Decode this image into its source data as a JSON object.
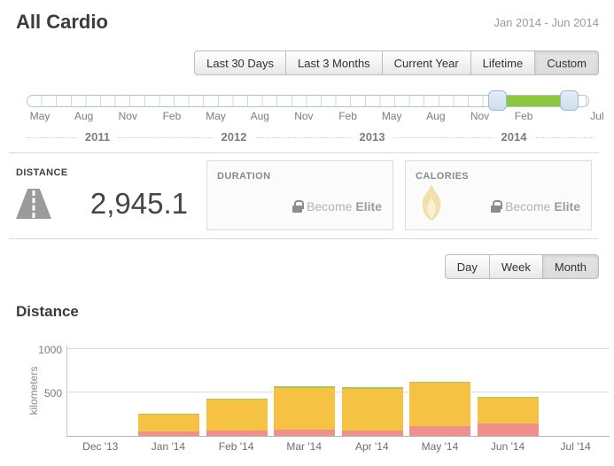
{
  "header": {
    "title": "All Cardio",
    "date_range": "Jan 2014 - Jun 2014"
  },
  "range_tabs": {
    "items": [
      "Last 30 Days",
      "Last 3 Months",
      "Current Year",
      "Lifetime",
      "Custom"
    ],
    "selected": "Custom"
  },
  "slider": {
    "month_labels": [
      "May",
      "Aug",
      "Nov",
      "Feb",
      "May",
      "Aug",
      "Nov",
      "Feb",
      "May",
      "Aug",
      "Nov",
      "Feb",
      "Jul"
    ],
    "year_labels": [
      "2011",
      "2012",
      "2013",
      "2014"
    ],
    "selected_range_color": "#8dc63f"
  },
  "stats": {
    "distance": {
      "label": "DISTANCE",
      "value": "2,945.1",
      "icon": "road-icon"
    },
    "duration": {
      "label": "DURATION",
      "locked_text": "Become",
      "locked_text_bold": "Elite",
      "icon": "lock-icon"
    },
    "calories": {
      "label": "CALORIES",
      "locked_text": "Become",
      "locked_text_bold": "Elite",
      "icon": "flame-icon",
      "flame_color": "#f2dfa9"
    }
  },
  "granularity_tabs": {
    "items": [
      "Day",
      "Week",
      "Month"
    ],
    "selected": "Month"
  },
  "chart": {
    "title": "Distance"
  },
  "chart_data": {
    "type": "bar",
    "stacked": true,
    "title": "Distance",
    "categories": [
      "Dec '13",
      "Jan '14",
      "Feb '14",
      "Mar '14",
      "Apr '14",
      "May '14",
      "Jun '14",
      "Jul '14"
    ],
    "series": [
      {
        "name": "pink-segment",
        "color": "#f0908c",
        "values": [
          0,
          50,
          65,
          70,
          65,
          110,
          140,
          0
        ]
      },
      {
        "name": "yellow-segment",
        "color": "#f5c243",
        "values": [
          0,
          195,
          350,
          483,
          480,
          505,
          295,
          0
        ]
      },
      {
        "name": "green-segment",
        "color": "#a6c84d",
        "values": [
          0,
          15,
          12,
          17,
          15,
          8,
          15,
          0
        ]
      }
    ],
    "xlabel": "",
    "ylabel": "kilometers",
    "yticks": [
      500,
      1000
    ],
    "ylim": [
      0,
      1050
    ],
    "grid": true,
    "legend": "none"
  }
}
